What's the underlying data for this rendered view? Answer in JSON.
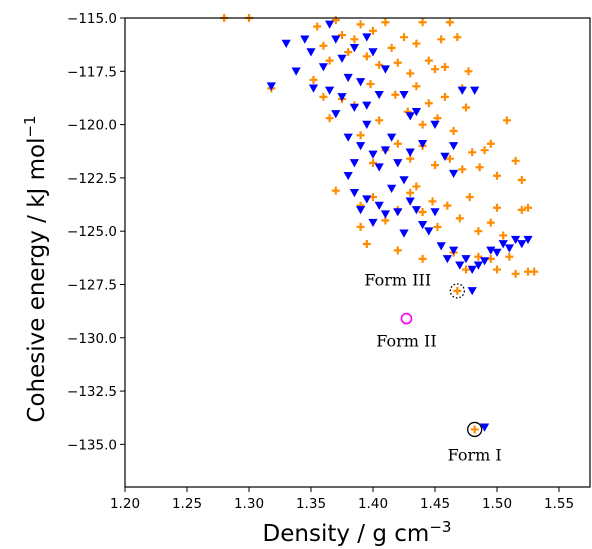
{
  "chart_data": {
    "type": "scatter",
    "title": "",
    "xlabel": {
      "base": "Density / g cm",
      "sup": "−3"
    },
    "ylabel": {
      "base": "Cohesive energy / kJ mol",
      "sup": "−1"
    },
    "xlim": [
      1.2,
      1.575
    ],
    "ylim": [
      -137.0,
      -115.0
    ],
    "xticks": [
      1.2,
      1.25,
      1.3,
      1.35,
      1.4,
      1.45,
      1.5,
      1.55
    ],
    "xtick_labels": [
      "1.20",
      "1.25",
      "1.30",
      "1.35",
      "1.40",
      "1.45",
      "1.50",
      "1.55"
    ],
    "yticks": [
      -115.0,
      -117.5,
      -120.0,
      -122.5,
      -125.0,
      -127.5,
      -130.0,
      -132.5,
      -135.0
    ],
    "ytick_labels": [
      "−115.0",
      "−117.5",
      "−120.0",
      "−122.5",
      "−125.0",
      "−127.5",
      "−130.0",
      "−132.5",
      "−135.0"
    ],
    "grid": false,
    "legend": "none",
    "series": [
      {
        "marker": "plus",
        "color": "#ff8c00",
        "points": [
          [
            1.28,
            -115.0
          ],
          [
            1.3,
            -115.0
          ],
          [
            1.318,
            -118.3
          ],
          [
            1.355,
            -115.4
          ],
          [
            1.36,
            -116.3
          ],
          [
            1.365,
            -117.0
          ],
          [
            1.37,
            -115.1
          ],
          [
            1.375,
            -115.8
          ],
          [
            1.38,
            -116.6
          ],
          [
            1.385,
            -116.0
          ],
          [
            1.39,
            -115.3
          ],
          [
            1.395,
            -116.8
          ],
          [
            1.4,
            -115.6
          ],
          [
            1.405,
            -117.2
          ],
          [
            1.41,
            -115.2
          ],
          [
            1.415,
            -116.4
          ],
          [
            1.42,
            -117.1
          ],
          [
            1.425,
            -115.9
          ],
          [
            1.43,
            -117.6
          ],
          [
            1.435,
            -116.2
          ],
          [
            1.44,
            -115.2
          ],
          [
            1.445,
            -117.0
          ],
          [
            1.45,
            -117.4
          ],
          [
            1.455,
            -116.0
          ],
          [
            1.458,
            -117.3
          ],
          [
            1.462,
            -115.2
          ],
          [
            1.468,
            -115.9
          ],
          [
            1.472,
            -118.3
          ],
          [
            1.477,
            -117.5
          ],
          [
            1.36,
            -118.7
          ],
          [
            1.352,
            -117.9
          ],
          [
            1.365,
            -119.7
          ],
          [
            1.375,
            -118.8
          ],
          [
            1.385,
            -119.1
          ],
          [
            1.398,
            -118.1
          ],
          [
            1.405,
            -119.8
          ],
          [
            1.418,
            -118.6
          ],
          [
            1.428,
            -119.4
          ],
          [
            1.435,
            -118.2
          ],
          [
            1.44,
            -120.0
          ],
          [
            1.445,
            -119.0
          ],
          [
            1.452,
            -119.7
          ],
          [
            1.458,
            -118.7
          ],
          [
            1.465,
            -120.3
          ],
          [
            1.475,
            -119.2
          ],
          [
            1.48,
            -121.3
          ],
          [
            1.39,
            -120.5
          ],
          [
            1.4,
            -121.8
          ],
          [
            1.41,
            -121.2
          ],
          [
            1.42,
            -120.9
          ],
          [
            1.43,
            -121.6
          ],
          [
            1.44,
            -121.0
          ],
          [
            1.45,
            -121.9
          ],
          [
            1.462,
            -121.6
          ],
          [
            1.472,
            -122.1
          ],
          [
            1.486,
            -122.0
          ],
          [
            1.49,
            -121.2
          ],
          [
            1.495,
            -120.9
          ],
          [
            1.5,
            -122.4
          ],
          [
            1.508,
            -119.8
          ],
          [
            1.515,
            -121.7
          ],
          [
            1.52,
            -122.6
          ],
          [
            1.37,
            -123.1
          ],
          [
            1.39,
            -123.8
          ],
          [
            1.4,
            -123.4
          ],
          [
            1.41,
            -124.5
          ],
          [
            1.42,
            -124.0
          ],
          [
            1.43,
            -123.2
          ],
          [
            1.435,
            -122.9
          ],
          [
            1.44,
            -124.1
          ],
          [
            1.448,
            -123.6
          ],
          [
            1.452,
            -124.8
          ],
          [
            1.46,
            -123.8
          ],
          [
            1.47,
            -124.4
          ],
          [
            1.478,
            -123.4
          ],
          [
            1.485,
            -125.0
          ],
          [
            1.495,
            -124.6
          ],
          [
            1.5,
            -123.9
          ],
          [
            1.505,
            -125.2
          ],
          [
            1.52,
            -124.0
          ],
          [
            1.525,
            -123.9
          ],
          [
            1.39,
            -124.8
          ],
          [
            1.42,
            -125.9
          ],
          [
            1.44,
            -126.3
          ],
          [
            1.465,
            -126.0
          ],
          [
            1.475,
            -126.8
          ],
          [
            1.485,
            -126.2
          ],
          [
            1.495,
            -126.3
          ],
          [
            1.5,
            -126.8
          ],
          [
            1.51,
            -126.2
          ],
          [
            1.515,
            -127.0
          ],
          [
            1.525,
            -126.9
          ],
          [
            1.53,
            -126.9
          ],
          [
            1.468,
            -127.8
          ],
          [
            1.482,
            -134.3
          ],
          [
            1.395,
            -125.6
          ]
        ]
      },
      {
        "marker": "triangle_down",
        "color": "#0000ff",
        "points": [
          [
            1.318,
            -118.2
          ],
          [
            1.33,
            -116.2
          ],
          [
            1.338,
            -117.5
          ],
          [
            1.345,
            -116.0
          ],
          [
            1.35,
            -116.6
          ],
          [
            1.352,
            -118.3
          ],
          [
            1.36,
            -117.3
          ],
          [
            1.365,
            -115.3
          ],
          [
            1.37,
            -116.0
          ],
          [
            1.375,
            -116.9
          ],
          [
            1.38,
            -117.8
          ],
          [
            1.385,
            -116.4
          ],
          [
            1.39,
            -118.0
          ],
          [
            1.395,
            -115.9
          ],
          [
            1.4,
            -116.6
          ],
          [
            1.405,
            -118.6
          ],
          [
            1.41,
            -117.4
          ],
          [
            1.365,
            -118.4
          ],
          [
            1.37,
            -119.5
          ],
          [
            1.375,
            -118.7
          ],
          [
            1.38,
            -120.6
          ],
          [
            1.385,
            -119.2
          ],
          [
            1.39,
            -121.0
          ],
          [
            1.395,
            -120.0
          ],
          [
            1.4,
            -121.4
          ],
          [
            1.405,
            -122.0
          ],
          [
            1.41,
            -121.2
          ],
          [
            1.415,
            -120.6
          ],
          [
            1.42,
            -121.8
          ],
          [
            1.425,
            -122.6
          ],
          [
            1.43,
            -121.3
          ],
          [
            1.435,
            -119.4
          ],
          [
            1.44,
            -120.9
          ],
          [
            1.45,
            -120.0
          ],
          [
            1.458,
            -121.5
          ],
          [
            1.465,
            -122.3
          ],
          [
            1.472,
            -118.4
          ],
          [
            1.482,
            -118.4
          ],
          [
            1.465,
            -121.0
          ],
          [
            1.38,
            -122.4
          ],
          [
            1.385,
            -123.2
          ],
          [
            1.39,
            -124.0
          ],
          [
            1.395,
            -123.5
          ],
          [
            1.4,
            -124.6
          ],
          [
            1.405,
            -123.8
          ],
          [
            1.41,
            -124.2
          ],
          [
            1.415,
            -123.0
          ],
          [
            1.42,
            -124.1
          ],
          [
            1.425,
            -125.1
          ],
          [
            1.43,
            -123.6
          ],
          [
            1.435,
            -124.0
          ],
          [
            1.44,
            -124.7
          ],
          [
            1.445,
            -125.0
          ],
          [
            1.45,
            -124.1
          ],
          [
            1.455,
            -125.7
          ],
          [
            1.46,
            -126.3
          ],
          [
            1.465,
            -125.9
          ],
          [
            1.47,
            -126.6
          ],
          [
            1.475,
            -126.3
          ],
          [
            1.48,
            -126.8
          ],
          [
            1.485,
            -126.6
          ],
          [
            1.49,
            -126.4
          ],
          [
            1.495,
            -125.9
          ],
          [
            1.5,
            -126.0
          ],
          [
            1.505,
            -125.6
          ],
          [
            1.51,
            -125.8
          ],
          [
            1.515,
            -125.4
          ],
          [
            1.52,
            -125.6
          ],
          [
            1.525,
            -125.4
          ],
          [
            1.48,
            -127.8
          ],
          [
            1.49,
            -134.2
          ],
          [
            1.385,
            -121.8
          ],
          [
            1.395,
            -119.1
          ],
          [
            1.425,
            -118.6
          ],
          [
            1.43,
            -119.6
          ]
        ]
      },
      {
        "marker": "circle_open",
        "color": "#ff00ff",
        "points": [
          [
            1.427,
            -129.1
          ]
        ]
      }
    ],
    "highlights": [
      {
        "x": 1.468,
        "y": -127.8,
        "style": "dotted-circle",
        "color": "#000000"
      },
      {
        "x": 1.482,
        "y": -134.3,
        "style": "solid-circle",
        "color": "#000000"
      }
    ],
    "annotations": [
      {
        "text": "Form III",
        "x": 1.42,
        "y": -127.55
      },
      {
        "text": "Form II",
        "x": 1.427,
        "y": -130.4
      },
      {
        "text": "Form I",
        "x": 1.482,
        "y": -135.75
      }
    ]
  }
}
